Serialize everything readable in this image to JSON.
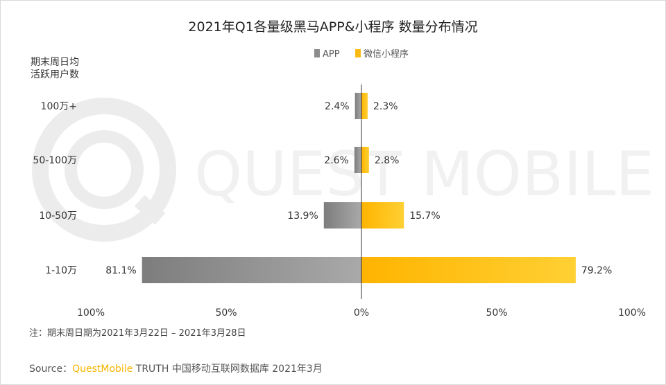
{
  "chart_data": {
    "type": "bar",
    "orientation": "horizontal-diverging",
    "title": "2021年Q1各量级黑马APP&小程序 数量分布情况",
    "ylabel_lines": [
      "期末周日均",
      "活跃用户数"
    ],
    "categories": [
      "100万+",
      "50-100万",
      "10-50万",
      "1-10万"
    ],
    "series": [
      {
        "name": "APP",
        "values": [
          2.4,
          2.6,
          13.9,
          81.1
        ],
        "labels": [
          "2.4%",
          "2.6%",
          "13.9%",
          "81.1%"
        ],
        "color": "#8c8c8c",
        "direction": "left"
      },
      {
        "name": "微信小程序",
        "values": [
          2.3,
          2.8,
          15.7,
          79.2
        ],
        "labels": [
          "2.3%",
          "2.8%",
          "15.7%",
          "79.2%"
        ],
        "color": "#fbbb13",
        "direction": "right"
      }
    ],
    "x_ticks": [
      "100%",
      "50%",
      "0%",
      "50%",
      "100%"
    ],
    "xlim": [
      -100,
      100
    ],
    "legend_position": "top-center",
    "grid": false,
    "watermark": "QUEST MOBILE"
  },
  "footer": {
    "note": "注：期末周日期为2021年3月22日 – 2021年3月28日",
    "source_prefix": "Source：",
    "source_brand": "QuestMobile",
    "source_rest": " TRUTH 中国移动互联网数据库 2021年3月"
  },
  "colors": {
    "app_dark": "#7d7d7d",
    "app_light": "#a9a9a9",
    "mini_dark": "#ffb400",
    "mini_light": "#ffd033"
  }
}
